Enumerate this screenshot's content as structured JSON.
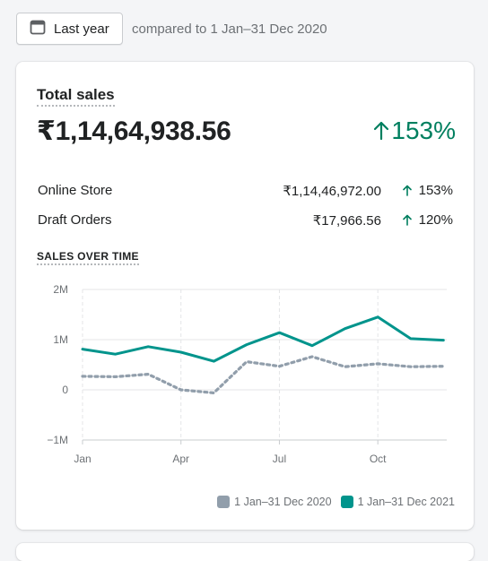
{
  "date_filter": {
    "button_label": "Last year",
    "comparison_text": "compared to 1 Jan–31 Dec 2020"
  },
  "total_sales": {
    "title": "Total sales",
    "value": "₹1,14,64,938.56",
    "change": "153%",
    "breakdown": [
      {
        "label": "Online Store",
        "amount": "₹1,14,46,972.00",
        "change": "153%"
      },
      {
        "label": "Draft Orders",
        "amount": "₹17,966.56",
        "change": "120%"
      }
    ]
  },
  "colors": {
    "primary_series": "#00948c",
    "comparison_series": "#919eab",
    "positive": "#007f5f"
  },
  "chart_data": {
    "type": "line",
    "title": "SALES OVER TIME",
    "x_tick_labels": [
      "Jan",
      "Apr",
      "Jul",
      "Oct"
    ],
    "y_tick_labels": [
      "2M",
      "1M",
      "0",
      "−1M"
    ],
    "ylim": [
      -1000000,
      2000000
    ],
    "x": [
      1,
      2,
      3,
      4,
      5,
      6,
      7,
      8,
      9,
      10,
      11,
      12
    ],
    "series": [
      {
        "name": "1 Jan–31 Dec 2020",
        "values": [
          270000,
          260000,
          310000,
          0,
          -60000,
          560000,
          470000,
          660000,
          460000,
          520000,
          460000,
          470000
        ]
      },
      {
        "name": "1 Jan–31 Dec 2021",
        "values": [
          810000,
          710000,
          860000,
          750000,
          570000,
          900000,
          1140000,
          880000,
          1220000,
          1450000,
          1020000,
          990000
        ]
      }
    ],
    "grid": true,
    "legend_position": "bottom-right"
  }
}
